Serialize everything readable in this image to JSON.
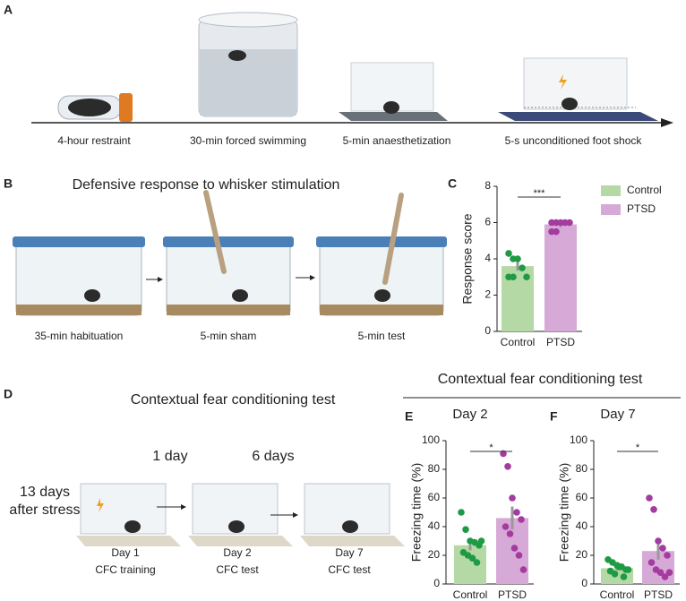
{
  "panels": [
    "A",
    "B",
    "C",
    "D",
    "E",
    "F"
  ],
  "timeline": [
    "4-hour restraint",
    "30-min forced swimming",
    "5-min anaesthetization",
    "5-s unconditioned foot shock"
  ],
  "whisker": {
    "title": "Defensive response to whisker stimulation",
    "steps": [
      "35-min habituation",
      "5-min sham",
      "5-min test"
    ]
  },
  "cfc": {
    "title": "Contextual fear conditioning test",
    "note": [
      "13 days",
      "after stress"
    ],
    "intervals": [
      "1 day",
      "6 days"
    ],
    "steps": [
      [
        "Day 1",
        "CFC training"
      ],
      [
        "Day 2",
        "CFC test"
      ],
      [
        "Day 7",
        "CFC test"
      ]
    ]
  },
  "cfc_header": "Contextual fear conditioning test",
  "chart_data": [
    {
      "type": "bar",
      "ylabel": "Response score",
      "categories": [
        "Control",
        "PTSD"
      ],
      "values": [
        3.6,
        5.9
      ],
      "errors": [
        0.25,
        0.15
      ],
      "colors": [
        "#b5d9a4",
        "#d6a9d6"
      ],
      "point_colors": [
        "#1e9a45",
        "#a43ba0"
      ],
      "points": [
        [
          4.3,
          4.0,
          4.0,
          3.5,
          3.0,
          3.0,
          3.0
        ],
        [
          6.0,
          6.0,
          6.0,
          6.0,
          6.0,
          5.5,
          5.5
        ]
      ],
      "ylim": [
        0,
        8
      ],
      "yticks": [
        0,
        2,
        4,
        6,
        8
      ],
      "annotation": "***",
      "legend": true
    },
    {
      "type": "bar",
      "title": "Day 2",
      "ylabel": "Freezing time (%)",
      "categories": [
        "Control",
        "PTSD"
      ],
      "values": [
        27,
        46
      ],
      "errors": [
        3.5,
        8
      ],
      "colors": [
        "#b5d9a4",
        "#d6a9d6"
      ],
      "point_colors": [
        "#1e9a45",
        "#a43ba0"
      ],
      "points": [
        [
          50,
          38,
          30,
          29,
          27,
          22,
          20,
          18,
          15,
          30
        ],
        [
          91,
          82,
          60,
          50,
          45,
          40,
          35,
          25,
          20,
          10
        ]
      ],
      "ylim": [
        0,
        100
      ],
      "yticks": [
        0,
        20,
        40,
        60,
        80,
        100
      ],
      "annotation": "*",
      "legend": false
    },
    {
      "type": "bar",
      "title": "Day 7",
      "ylabel": "Freezing time (%)",
      "categories": [
        "Control",
        "PTSD"
      ],
      "values": [
        11,
        23
      ],
      "errors": [
        1.5,
        6
      ],
      "colors": [
        "#b5d9a4",
        "#d6a9d6"
      ],
      "point_colors": [
        "#1e9a45",
        "#a43ba0"
      ],
      "points": [
        [
          17,
          15,
          13,
          12,
          10,
          9,
          7,
          12,
          5,
          10
        ],
        [
          60,
          52,
          30,
          25,
          20,
          15,
          10,
          8,
          5,
          8
        ]
      ],
      "ylim": [
        0,
        100
      ],
      "yticks": [
        0,
        20,
        40,
        60,
        80,
        100
      ],
      "annotation": "*",
      "legend": false
    }
  ]
}
